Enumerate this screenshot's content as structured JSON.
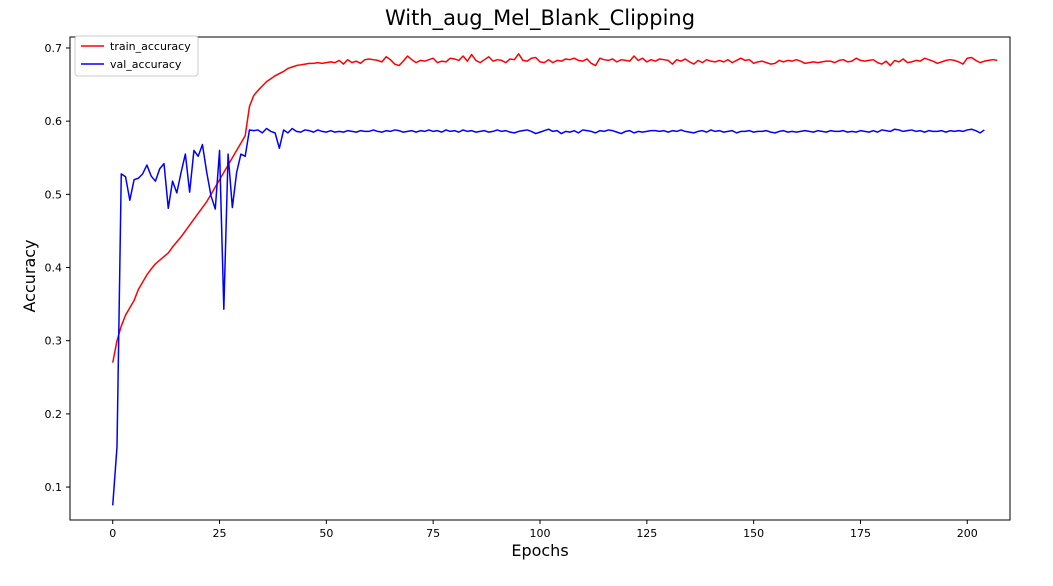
{
  "chart_data": {
    "type": "line",
    "title": "With_aug_Mel_Blank_Clipping",
    "xlabel": "Epochs",
    "ylabel": "Accuracy",
    "xlim": [
      -10,
      210
    ],
    "ylim": [
      0.055,
      0.715
    ],
    "xticks": [
      0,
      25,
      50,
      75,
      100,
      125,
      150,
      175,
      200
    ],
    "yticks": [
      0.1,
      0.2,
      0.3,
      0.4,
      0.5,
      0.6,
      0.7
    ],
    "grid": false,
    "legend_position": "top-left",
    "series": [
      {
        "name": "train_accuracy",
        "color": "#ff0000",
        "values": [
          0.27,
          0.3,
          0.32,
          0.335,
          0.345,
          0.355,
          0.37,
          0.38,
          0.39,
          0.398,
          0.405,
          0.41,
          0.415,
          0.42,
          0.428,
          0.435,
          0.442,
          0.45,
          0.458,
          0.466,
          0.474,
          0.482,
          0.49,
          0.5,
          0.51,
          0.52,
          0.53,
          0.54,
          0.55,
          0.56,
          0.57,
          0.58,
          0.62,
          0.635,
          0.642,
          0.648,
          0.654,
          0.658,
          0.662,
          0.665,
          0.668,
          0.672,
          0.674,
          0.676,
          0.677,
          0.678,
          0.679,
          0.679,
          0.68,
          0.679,
          0.68,
          0.681,
          0.68,
          0.683,
          0.678,
          0.684,
          0.68,
          0.682,
          0.679,
          0.684,
          0.685,
          0.684,
          0.683,
          0.681,
          0.688,
          0.684,
          0.678,
          0.676,
          0.682,
          0.689,
          0.684,
          0.68,
          0.683,
          0.682,
          0.684,
          0.686,
          0.68,
          0.682,
          0.681,
          0.686,
          0.685,
          0.683,
          0.689,
          0.682,
          0.691,
          0.683,
          0.68,
          0.684,
          0.688,
          0.682,
          0.684,
          0.683,
          0.68,
          0.685,
          0.684,
          0.692,
          0.683,
          0.682,
          0.686,
          0.687,
          0.681,
          0.68,
          0.684,
          0.68,
          0.683,
          0.682,
          0.685,
          0.684,
          0.686,
          0.683,
          0.682,
          0.685,
          0.679,
          0.676,
          0.686,
          0.684,
          0.683,
          0.685,
          0.681,
          0.684,
          0.683,
          0.682,
          0.689,
          0.683,
          0.686,
          0.681,
          0.684,
          0.682,
          0.685,
          0.684,
          0.683,
          0.678,
          0.684,
          0.682,
          0.685,
          0.681,
          0.678,
          0.683,
          0.68,
          0.684,
          0.682,
          0.681,
          0.683,
          0.681,
          0.684,
          0.68,
          0.683,
          0.686,
          0.683,
          0.684,
          0.679,
          0.681,
          0.682,
          0.68,
          0.678,
          0.679,
          0.683,
          0.681,
          0.683,
          0.682,
          0.684,
          0.682,
          0.679,
          0.68,
          0.681,
          0.68,
          0.681,
          0.682,
          0.682,
          0.68,
          0.683,
          0.684,
          0.681,
          0.682,
          0.686,
          0.683,
          0.682,
          0.683,
          0.684,
          0.68,
          0.678,
          0.682,
          0.676,
          0.683,
          0.681,
          0.685,
          0.68,
          0.681,
          0.683,
          0.682,
          0.686,
          0.684,
          0.682,
          0.679,
          0.681,
          0.683,
          0.684,
          0.683,
          0.681,
          0.678,
          0.686,
          0.687,
          0.683,
          0.68,
          0.682,
          0.683,
          0.684,
          0.683
        ]
      },
      {
        "name": "val_accuracy",
        "color": "#0000ff",
        "values": [
          0.075,
          0.155,
          0.528,
          0.524,
          0.492,
          0.52,
          0.522,
          0.528,
          0.54,
          0.525,
          0.518,
          0.535,
          0.542,
          0.481,
          0.518,
          0.502,
          0.53,
          0.555,
          0.503,
          0.56,
          0.552,
          0.568,
          0.53,
          0.498,
          0.48,
          0.56,
          0.343,
          0.555,
          0.482,
          0.53,
          0.555,
          0.552,
          0.588,
          0.587,
          0.588,
          0.584,
          0.59,
          0.586,
          0.584,
          0.563,
          0.588,
          0.584,
          0.59,
          0.586,
          0.585,
          0.588,
          0.587,
          0.585,
          0.588,
          0.586,
          0.585,
          0.587,
          0.585,
          0.586,
          0.585,
          0.587,
          0.586,
          0.585,
          0.587,
          0.586,
          0.586,
          0.588,
          0.586,
          0.585,
          0.587,
          0.586,
          0.588,
          0.587,
          0.585,
          0.586,
          0.587,
          0.585,
          0.587,
          0.586,
          0.588,
          0.586,
          0.587,
          0.585,
          0.588,
          0.586,
          0.587,
          0.585,
          0.588,
          0.586,
          0.587,
          0.585,
          0.586,
          0.587,
          0.585,
          0.586,
          0.588,
          0.586,
          0.587,
          0.585,
          0.584,
          0.586,
          0.587,
          0.588,
          0.586,
          0.583,
          0.585,
          0.587,
          0.589,
          0.586,
          0.587,
          0.583,
          0.586,
          0.585,
          0.587,
          0.584,
          0.588,
          0.587,
          0.586,
          0.584,
          0.587,
          0.586,
          0.588,
          0.587,
          0.585,
          0.583,
          0.586,
          0.587,
          0.584,
          0.586,
          0.585,
          0.586,
          0.587,
          0.587,
          0.586,
          0.587,
          0.585,
          0.587,
          0.586,
          0.588,
          0.586,
          0.585,
          0.584,
          0.586,
          0.587,
          0.585,
          0.588,
          0.586,
          0.587,
          0.585,
          0.586,
          0.587,
          0.584,
          0.586,
          0.586,
          0.587,
          0.585,
          0.586,
          0.586,
          0.587,
          0.585,
          0.584,
          0.586,
          0.587,
          0.585,
          0.586,
          0.585,
          0.586,
          0.587,
          0.586,
          0.585,
          0.587,
          0.586,
          0.585,
          0.587,
          0.586,
          0.586,
          0.587,
          0.585,
          0.586,
          0.585,
          0.587,
          0.586,
          0.585,
          0.587,
          0.585,
          0.588,
          0.587,
          0.586,
          0.589,
          0.588,
          0.586,
          0.587,
          0.588,
          0.586,
          0.587,
          0.585,
          0.587,
          0.586,
          0.586,
          0.587,
          0.585,
          0.587,
          0.586,
          0.587,
          0.586,
          0.588,
          0.589,
          0.587,
          0.584,
          0.588
        ]
      }
    ]
  }
}
